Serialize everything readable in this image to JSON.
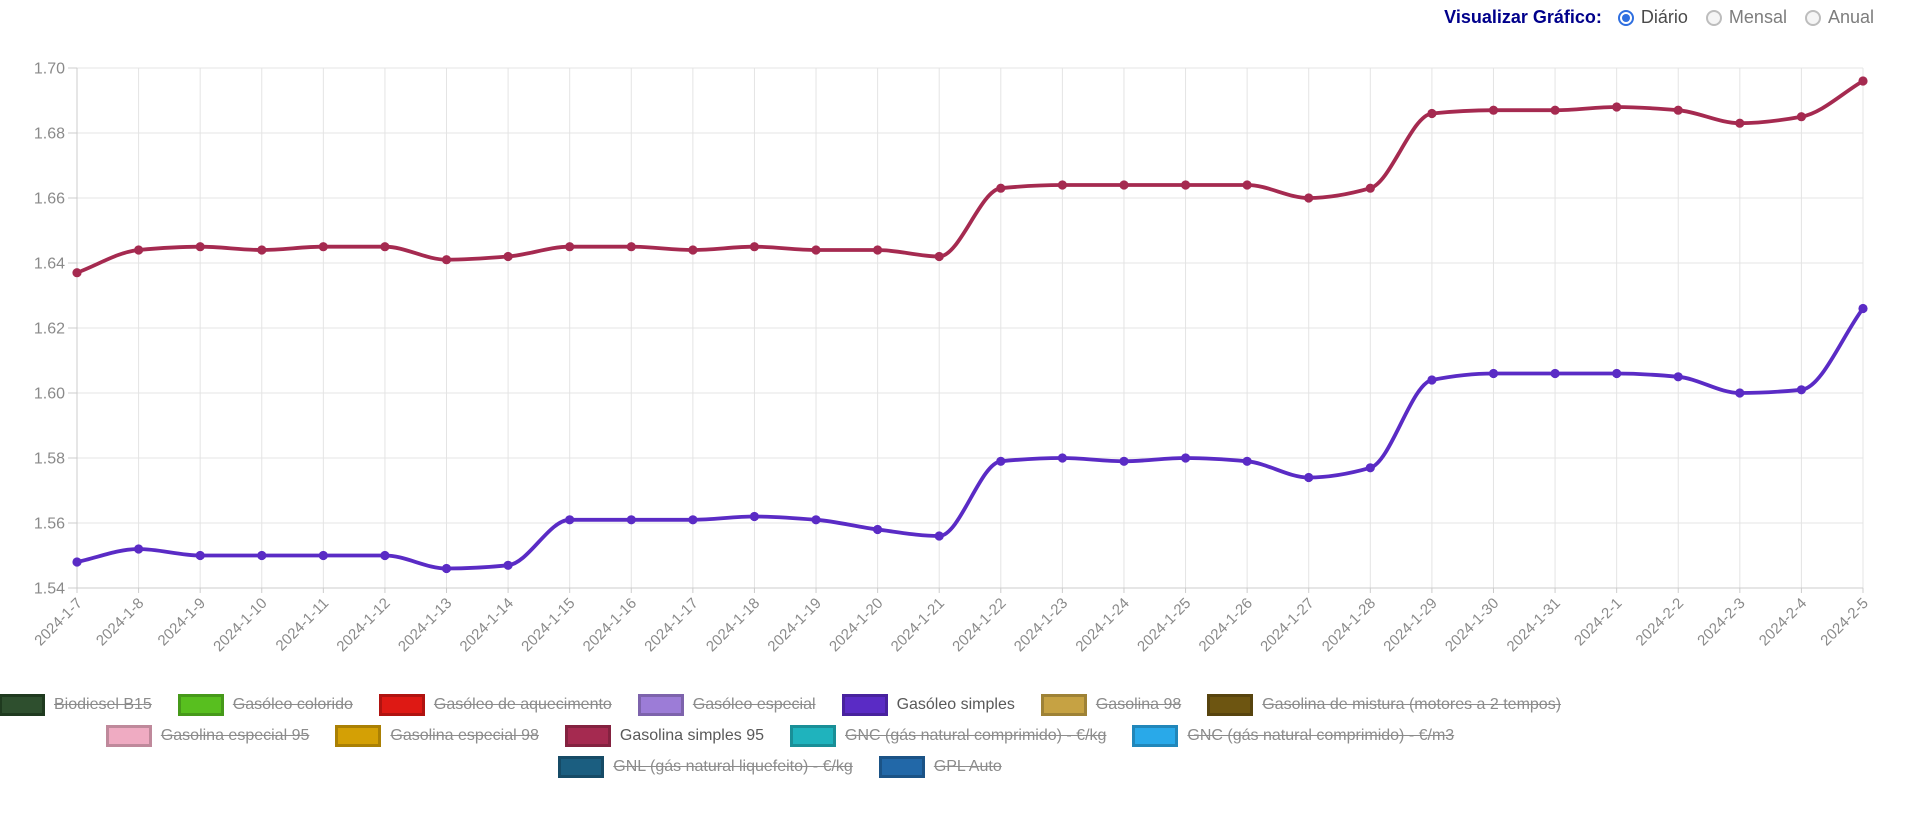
{
  "controls": {
    "label": "Visualizar Gráfico:",
    "options": [
      {
        "id": "diario",
        "label": "Diário",
        "selected": true
      },
      {
        "id": "mensal",
        "label": "Mensal",
        "selected": false
      },
      {
        "id": "anual",
        "label": "Anual",
        "selected": false
      }
    ]
  },
  "chart_data": {
    "type": "line",
    "x": [
      "2024-1-7",
      "2024-1-8",
      "2024-1-9",
      "2024-1-10",
      "2024-1-11",
      "2024-1-12",
      "2024-1-13",
      "2024-1-14",
      "2024-1-15",
      "2024-1-16",
      "2024-1-17",
      "2024-1-18",
      "2024-1-19",
      "2024-1-20",
      "2024-1-21",
      "2024-1-22",
      "2024-1-23",
      "2024-1-24",
      "2024-1-25",
      "2024-1-26",
      "2024-1-27",
      "2024-1-28",
      "2024-1-29",
      "2024-1-30",
      "2024-1-31",
      "2024-2-1",
      "2024-2-2",
      "2024-2-3",
      "2024-2-4",
      "2024-2-5"
    ],
    "series": [
      {
        "name": "Gasolina simples 95",
        "color": "#a52a50",
        "values": [
          1.637,
          1.644,
          1.645,
          1.644,
          1.645,
          1.645,
          1.641,
          1.642,
          1.645,
          1.645,
          1.644,
          1.645,
          1.644,
          1.644,
          1.642,
          1.663,
          1.664,
          1.664,
          1.664,
          1.664,
          1.66,
          1.663,
          1.686,
          1.687,
          1.687,
          1.688,
          1.687,
          1.683,
          1.685,
          1.696
        ]
      },
      {
        "name": "Gasóleo simples",
        "color": "#5a2bc5",
        "values": [
          1.548,
          1.552,
          1.55,
          1.55,
          1.55,
          1.55,
          1.546,
          1.547,
          1.561,
          1.561,
          1.561,
          1.562,
          1.561,
          1.558,
          1.556,
          1.579,
          1.58,
          1.579,
          1.58,
          1.579,
          1.574,
          1.577,
          1.604,
          1.606,
          1.606,
          1.606,
          1.605,
          1.6,
          1.601,
          1.626
        ]
      }
    ],
    "ylim": [
      1.54,
      1.7
    ],
    "ytick_step": 0.02,
    "yticks": [
      "1.54",
      "1.56",
      "1.58",
      "1.60",
      "1.62",
      "1.64",
      "1.66",
      "1.68",
      "1.70"
    ],
    "xlabel": "",
    "ylabel": "",
    "grid": true,
    "legend_position": "bottom"
  },
  "legend": {
    "rows": [
      {
        "items": [
          {
            "label": "Biodiesel B15",
            "color": "#2e4f2e",
            "border": "#1f3a1f",
            "active": false
          },
          {
            "label": "Gasóleo colorido",
            "color": "#58bf1f",
            "border": "#46991a",
            "active": false
          },
          {
            "label": "Gasóleo de aquecimento",
            "color": "#de1914",
            "border": "#b01310",
            "active": false
          },
          {
            "label": "Gasóleo especial",
            "color": "#9c7cd7",
            "border": "#7d63ac",
            "active": false
          },
          {
            "label": "Gasóleo simples",
            "color": "#5a2bc5",
            "border": "#48229e",
            "active": true
          },
          {
            "label": "Gasolina 98",
            "color": "#c6a243",
            "border": "#9e8236",
            "active": false
          },
          {
            "label": "Gasolina de mistura (motores a 2 tempos)",
            "color": "#6d5511",
            "border": "#57440e",
            "active": false
          }
        ]
      },
      {
        "items": [
          {
            "label": "Gasolina especial 95",
            "color": "#efabc2",
            "border": "#bf899b",
            "active": false
          },
          {
            "label": "Gasolina especial 98",
            "color": "#d4a005",
            "border": "#aa8004",
            "active": false
          },
          {
            "label": "Gasolina simples 95",
            "color": "#a52a50",
            "border": "#842240",
            "active": true
          },
          {
            "label": "GNC (gás natural comprimido) - €/kg",
            "color": "#1fb3bd",
            "border": "#198f97",
            "active": false
          },
          {
            "label": "GNC (gás natural comprimido) - €/m3",
            "color": "#29a9e9",
            "border": "#2187ba",
            "active": false
          }
        ]
      },
      {
        "items": [
          {
            "label": "GNL (gás natural liquefeito) - €/kg",
            "color": "#1b5e80",
            "border": "#164b66",
            "active": false
          },
          {
            "label": "GPL Auto",
            "color": "#2268a8",
            "border": "#1b5386",
            "active": false
          }
        ]
      }
    ]
  },
  "styles": {
    "grid_color": "#e4e4e4",
    "axis_color": "#cccccc",
    "tick_label_color": "#8a8a8a",
    "title_color": "#00008b",
    "radio_selected_color": "#2f6fe0",
    "active_series_purple": "#5a2bc5",
    "active_series_maroon": "#a52a50"
  }
}
